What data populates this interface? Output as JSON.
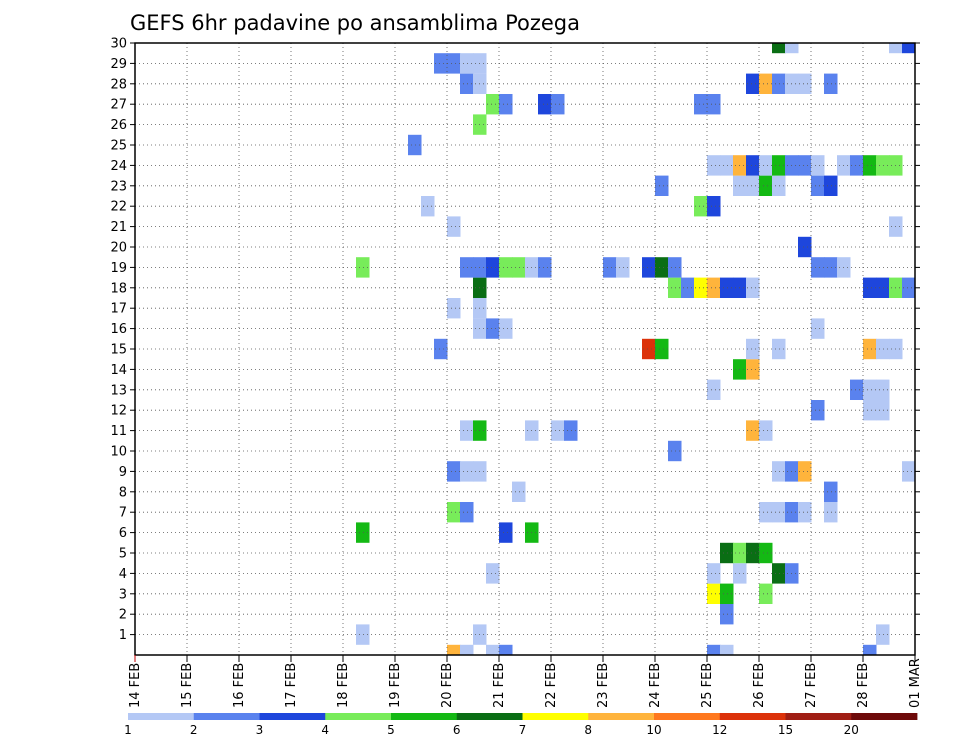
{
  "chart_data": {
    "type": "heatmap",
    "title": "GEFS 6hr padavine po ansamblima Pozega",
    "xlabel": "",
    "ylabel": "",
    "x_tick_labels": [
      "14 FEB",
      "15 FEB",
      "16 FEB",
      "17 FEB",
      "18 FEB",
      "19 FEB",
      "20 FEB",
      "21 FEB",
      "22 FEB",
      "23 FEB",
      "24 FEB",
      "25 FEB",
      "26 FEB",
      "27 FEB",
      "28 FEB",
      "01 MAR"
    ],
    "y_tick_labels": [
      "1",
      "2",
      "3",
      "4",
      "5",
      "6",
      "7",
      "8",
      "9",
      "10",
      "11",
      "12",
      "13",
      "14",
      "15",
      "16",
      "17",
      "18",
      "19",
      "20",
      "21",
      "22",
      "23",
      "24",
      "25",
      "26",
      "27",
      "28",
      "29",
      "30"
    ],
    "x_range_days": [
      0,
      15
    ],
    "y_range_members": [
      0,
      30
    ],
    "grid": "dotted",
    "colorbar": {
      "placement": "bottom",
      "labels": [
        "1",
        "2",
        "3",
        "4",
        "5",
        "6",
        "7",
        "8",
        "10",
        "12",
        "15",
        "20"
      ],
      "colors": [
        "#b4c8f5",
        "#5a82ee",
        "#1e46dc",
        "#78ec5a",
        "#14b914",
        "#0a6e14",
        "#ffff00",
        "#ffb43c",
        "#ff781e",
        "#dc320a",
        "#a01e14",
        "#6e0a0a"
      ]
    },
    "cells": [
      {
        "m": 1,
        "day": 4.25,
        "c": 1
      },
      {
        "m": 1,
        "day": 6.5,
        "c": 1
      },
      {
        "m": 1,
        "day": 14.25,
        "c": 1
      },
      {
        "m": 2,
        "day": 11.25,
        "c": 2
      },
      {
        "m": 3,
        "day": 11.0,
        "c": 7
      },
      {
        "m": 3,
        "day": 11.25,
        "c": 5
      },
      {
        "m": 3,
        "day": 12.0,
        "c": 4
      },
      {
        "m": 4,
        "day": 6.75,
        "c": 1
      },
      {
        "m": 4,
        "day": 11.0,
        "c": 1
      },
      {
        "m": 4,
        "day": 11.5,
        "c": 1
      },
      {
        "m": 4,
        "day": 12.25,
        "c": 6
      },
      {
        "m": 4,
        "day": 12.5,
        "c": 2
      },
      {
        "m": 5,
        "day": 11.25,
        "c": 6
      },
      {
        "m": 5,
        "day": 11.5,
        "c": 4
      },
      {
        "m": 5,
        "day": 11.75,
        "c": 6
      },
      {
        "m": 5,
        "day": 12.0,
        "c": 5
      },
      {
        "m": 6,
        "day": 4.25,
        "c": 5
      },
      {
        "m": 6,
        "day": 7.0,
        "c": 3
      },
      {
        "m": 6,
        "day": 7.5,
        "c": 5
      },
      {
        "m": 7,
        "day": 6.0,
        "c": 4
      },
      {
        "m": 7,
        "day": 6.25,
        "c": 2
      },
      {
        "m": 7,
        "day": 12.0,
        "c": 1
      },
      {
        "m": 7,
        "day": 12.25,
        "c": 1
      },
      {
        "m": 7,
        "day": 12.5,
        "c": 2
      },
      {
        "m": 7,
        "day": 12.75,
        "c": 1
      },
      {
        "m": 7,
        "day": 13.25,
        "c": 1
      },
      {
        "m": 8,
        "day": 7.25,
        "c": 1
      },
      {
        "m": 8,
        "day": 13.25,
        "c": 2
      },
      {
        "m": 9,
        "day": 6.0,
        "c": 2
      },
      {
        "m": 9,
        "day": 6.25,
        "c": 1
      },
      {
        "m": 9,
        "day": 6.5,
        "c": 1
      },
      {
        "m": 9,
        "day": 12.25,
        "c": 1
      },
      {
        "m": 9,
        "day": 12.5,
        "c": 2
      },
      {
        "m": 9,
        "day": 12.75,
        "c": 8
      },
      {
        "m": 9,
        "day": 14.75,
        "c": 1
      },
      {
        "m": 10,
        "day": 10.25,
        "c": 2
      },
      {
        "m": 11,
        "day": 6.25,
        "c": 1
      },
      {
        "m": 11,
        "day": 6.5,
        "c": 5
      },
      {
        "m": 11,
        "day": 7.5,
        "c": 1
      },
      {
        "m": 11,
        "day": 8.0,
        "c": 1
      },
      {
        "m": 11,
        "day": 8.25,
        "c": 2
      },
      {
        "m": 11,
        "day": 11.75,
        "c": 8
      },
      {
        "m": 11,
        "day": 12.0,
        "c": 1
      },
      {
        "m": 12,
        "day": 13.0,
        "c": 2
      },
      {
        "m": 12,
        "day": 14.0,
        "c": 1
      },
      {
        "m": 12,
        "day": 14.25,
        "c": 1
      },
      {
        "m": 13,
        "day": 11.0,
        "c": 1
      },
      {
        "m": 13,
        "day": 13.75,
        "c": 2
      },
      {
        "m": 13,
        "day": 14.0,
        "c": 1
      },
      {
        "m": 13,
        "day": 14.25,
        "c": 1
      },
      {
        "m": 14,
        "day": 11.5,
        "c": 5
      },
      {
        "m": 14,
        "day": 11.75,
        "c": 8
      },
      {
        "m": 15,
        "day": 5.75,
        "c": 2
      },
      {
        "m": 15,
        "day": 9.75,
        "c": 10
      },
      {
        "m": 15,
        "day": 10.0,
        "c": 5
      },
      {
        "m": 15,
        "day": 11.75,
        "c": 1
      },
      {
        "m": 15,
        "day": 12.25,
        "c": 1
      },
      {
        "m": 15,
        "day": 14.0,
        "c": 8
      },
      {
        "m": 15,
        "day": 14.25,
        "c": 1
      },
      {
        "m": 15,
        "day": 14.5,
        "c": 1
      },
      {
        "m": 16,
        "day": 6.5,
        "c": 1
      },
      {
        "m": 16,
        "day": 6.75,
        "c": 2
      },
      {
        "m": 16,
        "day": 7.0,
        "c": 1
      },
      {
        "m": 16,
        "day": 13.0,
        "c": 1
      },
      {
        "m": 17,
        "day": 6.0,
        "c": 1
      },
      {
        "m": 17,
        "day": 6.5,
        "c": 1
      },
      {
        "m": 18,
        "day": 6.5,
        "c": 6
      },
      {
        "m": 18,
        "day": 10.25,
        "c": 4
      },
      {
        "m": 18,
        "day": 10.5,
        "c": 2
      },
      {
        "m": 18,
        "day": 10.75,
        "c": 7
      },
      {
        "m": 18,
        "day": 11.0,
        "c": 8
      },
      {
        "m": 18,
        "day": 11.25,
        "c": 3
      },
      {
        "m": 18,
        "day": 11.5,
        "c": 3
      },
      {
        "m": 18,
        "day": 11.75,
        "c": 1
      },
      {
        "m": 18,
        "day": 14.0,
        "c": 3
      },
      {
        "m": 18,
        "day": 14.25,
        "c": 3
      },
      {
        "m": 18,
        "day": 14.5,
        "c": 4
      },
      {
        "m": 18,
        "day": 14.75,
        "c": 2
      },
      {
        "m": 19,
        "day": 4.25,
        "c": 4
      },
      {
        "m": 19,
        "day": 6.25,
        "c": 2
      },
      {
        "m": 19,
        "day": 6.5,
        "c": 2
      },
      {
        "m": 19,
        "day": 6.75,
        "c": 3
      },
      {
        "m": 19,
        "day": 7.0,
        "c": 4
      },
      {
        "m": 19,
        "day": 7.25,
        "c": 4
      },
      {
        "m": 19,
        "day": 7.5,
        "c": 1
      },
      {
        "m": 19,
        "day": 7.75,
        "c": 2
      },
      {
        "m": 19,
        "day": 9.0,
        "c": 2
      },
      {
        "m": 19,
        "day": 9.25,
        "c": 1
      },
      {
        "m": 19,
        "day": 9.75,
        "c": 3
      },
      {
        "m": 19,
        "day": 10.0,
        "c": 6
      },
      {
        "m": 19,
        "day": 10.25,
        "c": 2
      },
      {
        "m": 19,
        "day": 13.0,
        "c": 2
      },
      {
        "m": 19,
        "day": 13.25,
        "c": 2
      },
      {
        "m": 19,
        "day": 13.5,
        "c": 1
      },
      {
        "m": 20,
        "day": 12.75,
        "c": 3
      },
      {
        "m": 21,
        "day": 6.0,
        "c": 1
      },
      {
        "m": 21,
        "day": 14.5,
        "c": 1
      },
      {
        "m": 22,
        "day": 5.5,
        "c": 1
      },
      {
        "m": 22,
        "day": 10.75,
        "c": 4
      },
      {
        "m": 22,
        "day": 11.0,
        "c": 3
      },
      {
        "m": 23,
        "day": 10.0,
        "c": 2
      },
      {
        "m": 23,
        "day": 11.5,
        "c": 1
      },
      {
        "m": 23,
        "day": 11.75,
        "c": 1
      },
      {
        "m": 23,
        "day": 12.0,
        "c": 5
      },
      {
        "m": 23,
        "day": 12.25,
        "c": 1
      },
      {
        "m": 23,
        "day": 13.0,
        "c": 2
      },
      {
        "m": 23,
        "day": 13.25,
        "c": 3
      },
      {
        "m": 24,
        "day": 11.0,
        "c": 1
      },
      {
        "m": 24,
        "day": 11.25,
        "c": 1
      },
      {
        "m": 24,
        "day": 11.5,
        "c": 8
      },
      {
        "m": 24,
        "day": 11.75,
        "c": 3
      },
      {
        "m": 24,
        "day": 12.0,
        "c": 1
      },
      {
        "m": 24,
        "day": 12.25,
        "c": 5
      },
      {
        "m": 24,
        "day": 12.5,
        "c": 2
      },
      {
        "m": 24,
        "day": 12.75,
        "c": 2
      },
      {
        "m": 24,
        "day": 13.0,
        "c": 1
      },
      {
        "m": 24,
        "day": 13.5,
        "c": 1
      },
      {
        "m": 24,
        "day": 13.75,
        "c": 2
      },
      {
        "m": 24,
        "day": 14.0,
        "c": 5
      },
      {
        "m": 24,
        "day": 14.25,
        "c": 4
      },
      {
        "m": 24,
        "day": 14.5,
        "c": 4
      },
      {
        "m": 25,
        "day": 5.25,
        "c": 2
      },
      {
        "m": 26,
        "day": 6.5,
        "c": 4
      },
      {
        "m": 27,
        "day": 6.75,
        "c": 4
      },
      {
        "m": 27,
        "day": 7.0,
        "c": 2
      },
      {
        "m": 27,
        "day": 7.75,
        "c": 3
      },
      {
        "m": 27,
        "day": 8.0,
        "c": 2
      },
      {
        "m": 27,
        "day": 10.75,
        "c": 2
      },
      {
        "m": 27,
        "day": 11.0,
        "c": 2
      },
      {
        "m": 28,
        "day": 6.25,
        "c": 2
      },
      {
        "m": 28,
        "day": 6.5,
        "c": 1
      },
      {
        "m": 28,
        "day": 11.75,
        "c": 3
      },
      {
        "m": 28,
        "day": 12.0,
        "c": 8
      },
      {
        "m": 28,
        "day": 12.25,
        "c": 2
      },
      {
        "m": 28,
        "day": 12.5,
        "c": 1
      },
      {
        "m": 28,
        "day": 12.75,
        "c": 1
      },
      {
        "m": 28,
        "day": 13.25,
        "c": 2
      },
      {
        "m": 29,
        "day": 5.75,
        "c": 2
      },
      {
        "m": 29,
        "day": 6.0,
        "c": 2
      },
      {
        "m": 29,
        "day": 6.25,
        "c": 1
      },
      {
        "m": 29,
        "day": 6.5,
        "c": 1
      },
      {
        "m": 30,
        "day": 12.25,
        "c": 6
      },
      {
        "m": 30,
        "day": 12.5,
        "c": 1
      },
      {
        "m": 30,
        "day": 14.5,
        "c": 1
      },
      {
        "m": 30,
        "day": 14.75,
        "c": 3
      },
      {
        "m": 0,
        "day": 6.0,
        "c": 8
      },
      {
        "m": 0,
        "day": 6.25,
        "c": 1
      },
      {
        "m": 0,
        "day": 6.75,
        "c": 1
      },
      {
        "m": 0,
        "day": 7.0,
        "c": 2
      },
      {
        "m": 0,
        "day": 11.0,
        "c": 2
      },
      {
        "m": 0,
        "day": 11.25,
        "c": 1
      },
      {
        "m": 0,
        "day": 14.0,
        "c": 2
      }
    ]
  }
}
